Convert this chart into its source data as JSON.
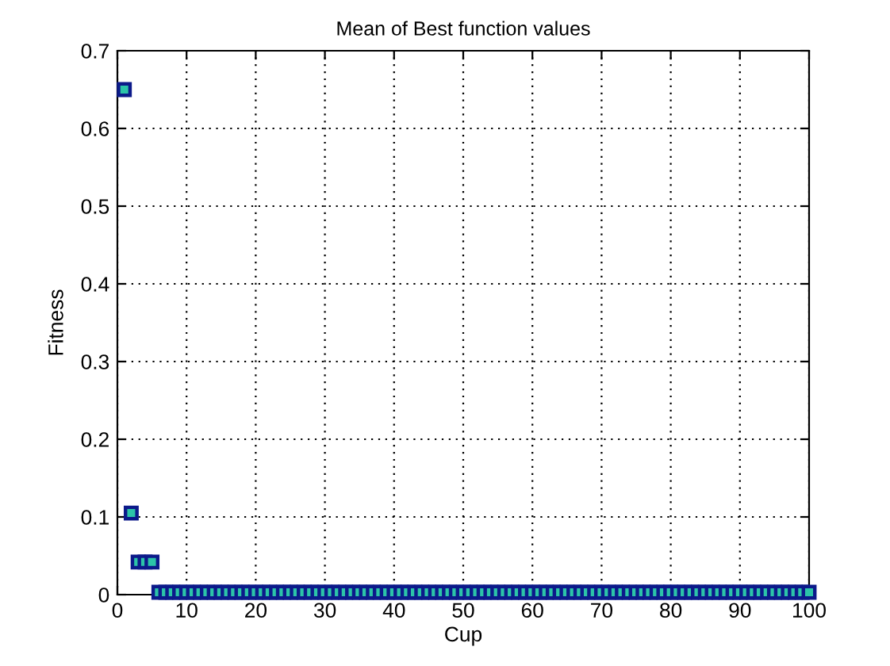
{
  "chart_data": {
    "type": "scatter",
    "title": "Mean of Best function values",
    "xlabel": "Cup",
    "ylabel": "Fitness",
    "x": [
      1,
      2,
      3,
      4,
      5,
      6,
      7,
      8,
      9,
      10,
      11,
      12,
      13,
      14,
      15,
      16,
      17,
      18,
      19,
      20,
      21,
      22,
      23,
      24,
      25,
      26,
      27,
      28,
      29,
      30,
      31,
      32,
      33,
      34,
      35,
      36,
      37,
      38,
      39,
      40,
      41,
      42,
      43,
      44,
      45,
      46,
      47,
      48,
      49,
      50,
      51,
      52,
      53,
      54,
      55,
      56,
      57,
      58,
      59,
      60,
      61,
      62,
      63,
      64,
      65,
      66,
      67,
      68,
      69,
      70,
      71,
      72,
      73,
      74,
      75,
      76,
      77,
      78,
      79,
      80,
      81,
      82,
      83,
      84,
      85,
      86,
      87,
      88,
      89,
      90,
      91,
      92,
      93,
      94,
      95,
      96,
      97,
      98,
      99,
      100
    ],
    "values": [
      0.65,
      0.105,
      0.042,
      0.042,
      0.042,
      0.003,
      0.003,
      0.003,
      0.003,
      0.003,
      0.003,
      0.003,
      0.003,
      0.003,
      0.003,
      0.003,
      0.003,
      0.003,
      0.003,
      0.003,
      0.003,
      0.003,
      0.003,
      0.003,
      0.003,
      0.003,
      0.003,
      0.003,
      0.003,
      0.003,
      0.003,
      0.003,
      0.003,
      0.003,
      0.003,
      0.003,
      0.003,
      0.003,
      0.003,
      0.003,
      0.003,
      0.003,
      0.003,
      0.003,
      0.003,
      0.003,
      0.003,
      0.003,
      0.003,
      0.003,
      0.003,
      0.003,
      0.003,
      0.003,
      0.003,
      0.003,
      0.003,
      0.003,
      0.003,
      0.003,
      0.003,
      0.003,
      0.003,
      0.003,
      0.003,
      0.003,
      0.003,
      0.003,
      0.003,
      0.003,
      0.003,
      0.003,
      0.003,
      0.003,
      0.003,
      0.003,
      0.003,
      0.003,
      0.003,
      0.003,
      0.003,
      0.003,
      0.003,
      0.003,
      0.003,
      0.003,
      0.003,
      0.003,
      0.003,
      0.003,
      0.003,
      0.003,
      0.003,
      0.003,
      0.003,
      0.003,
      0.003,
      0.003,
      0.003,
      0.003
    ],
    "color": "#0c1a8a",
    "marker": "square",
    "grid": true,
    "xlim": [
      0,
      100
    ],
    "xticks": [
      0,
      10,
      20,
      30,
      40,
      50,
      60,
      70,
      80,
      90,
      100
    ],
    "ylim": [
      0,
      0.7
    ],
    "yticks": [
      0,
      0.1,
      0.2,
      0.3,
      0.4,
      0.5,
      0.6,
      0.7
    ]
  }
}
